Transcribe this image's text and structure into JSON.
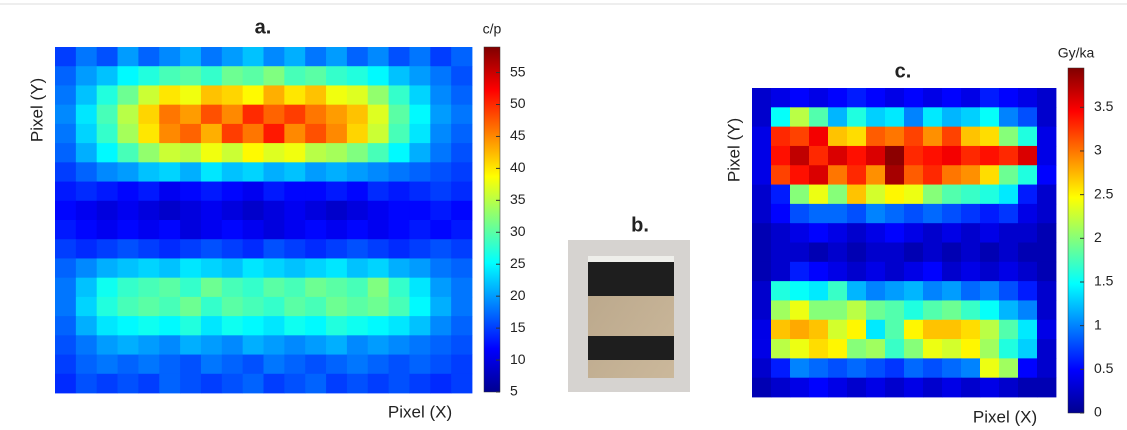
{
  "chart_data": [
    {
      "type": "heatmap",
      "title": "a.",
      "xlabel": "Pixel (X)",
      "ylabel": "Pixel (Y)",
      "colorbar_label": "c/p",
      "colormap": "jet",
      "clim": [
        5,
        59
      ],
      "cticks": [
        5,
        10,
        15,
        20,
        25,
        30,
        35,
        40,
        45,
        50,
        55
      ],
      "z": [
        [
          15,
          18,
          16,
          20,
          17,
          19,
          21,
          18,
          20,
          22,
          19,
          21,
          18,
          20,
          17,
          19,
          16,
          18,
          15,
          17
        ],
        [
          17,
          20,
          22,
          25,
          27,
          29,
          30,
          28,
          31,
          30,
          32,
          29,
          30,
          28,
          27,
          25,
          22,
          20,
          18,
          16
        ],
        [
          18,
          22,
          27,
          31,
          36,
          40,
          38,
          42,
          41,
          39,
          43,
          40,
          42,
          38,
          37,
          33,
          28,
          23,
          19,
          17
        ],
        [
          19,
          24,
          29,
          35,
          41,
          46,
          44,
          48,
          45,
          50,
          47,
          49,
          46,
          44,
          42,
          37,
          30,
          25,
          20,
          18
        ],
        [
          18,
          23,
          28,
          34,
          40,
          45,
          47,
          43,
          49,
          46,
          51,
          45,
          48,
          45,
          41,
          36,
          29,
          24,
          19,
          17
        ],
        [
          17,
          21,
          25,
          29,
          33,
          36,
          35,
          38,
          36,
          39,
          37,
          38,
          35,
          34,
          32,
          29,
          25,
          21,
          18,
          16
        ],
        [
          15,
          17,
          19,
          20,
          22,
          23,
          21,
          24,
          22,
          23,
          21,
          22,
          20,
          21,
          20,
          19,
          18,
          17,
          16,
          15
        ],
        [
          13,
          14,
          13,
          12,
          13,
          11,
          12,
          13,
          12,
          11,
          13,
          12,
          12,
          13,
          12,
          14,
          13,
          14,
          15,
          14
        ],
        [
          12,
          11,
          10,
          11,
          10,
          9,
          10,
          11,
          10,
          9,
          10,
          11,
          10,
          9,
          10,
          11,
          12,
          12,
          13,
          12
        ],
        [
          13,
          12,
          11,
          12,
          11,
          12,
          10,
          11,
          12,
          11,
          10,
          11,
          12,
          11,
          12,
          11,
          12,
          13,
          12,
          13
        ],
        [
          15,
          14,
          15,
          16,
          15,
          14,
          15,
          16,
          15,
          14,
          16,
          15,
          14,
          15,
          16,
          15,
          14,
          15,
          16,
          15
        ],
        [
          17,
          19,
          21,
          22,
          23,
          22,
          24,
          23,
          22,
          24,
          23,
          22,
          23,
          24,
          22,
          23,
          21,
          20,
          18,
          17
        ],
        [
          18,
          22,
          26,
          28,
          29,
          30,
          28,
          31,
          29,
          28,
          30,
          29,
          31,
          30,
          29,
          32,
          28,
          24,
          20,
          18
        ],
        [
          18,
          23,
          27,
          29,
          30,
          29,
          31,
          28,
          30,
          29,
          28,
          30,
          29,
          31,
          30,
          31,
          29,
          25,
          21,
          18
        ],
        [
          17,
          21,
          24,
          25,
          26,
          25,
          27,
          24,
          26,
          25,
          24,
          26,
          25,
          27,
          26,
          25,
          24,
          22,
          19,
          17
        ],
        [
          16,
          18,
          20,
          21,
          20,
          19,
          21,
          20,
          19,
          21,
          20,
          19,
          20,
          21,
          19,
          20,
          19,
          18,
          17,
          16
        ],
        [
          15,
          17,
          18,
          17,
          18,
          17,
          16,
          18,
          17,
          16,
          18,
          17,
          16,
          17,
          18,
          17,
          16,
          17,
          16,
          15
        ],
        [
          14,
          16,
          15,
          16,
          15,
          17,
          16,
          15,
          16,
          17,
          15,
          16,
          17,
          15,
          16,
          15,
          16,
          15,
          14,
          15
        ]
      ]
    },
    {
      "type": "heatmap",
      "title": "c.",
      "xlabel": "Pixel (X)",
      "ylabel": "Pixel (Y)",
      "colorbar_label": "Gy/ka",
      "colormap": "jet",
      "clim": [
        0,
        3.95
      ],
      "cticks": [
        0,
        0.5,
        1,
        1.5,
        2,
        2.5,
        3,
        3.5
      ],
      "z": [
        [
          0.3,
          0.4,
          0.5,
          0.4,
          0.5,
          0.6,
          0.5,
          0.4,
          0.5,
          0.4,
          0.5,
          0.4,
          0.6,
          0.5,
          0.4,
          0.3
        ],
        [
          0.3,
          1.5,
          2.2,
          1.8,
          1.2,
          1.6,
          1.3,
          1.4,
          1.0,
          1.4,
          1.2,
          1.3,
          1.5,
          1.0,
          0.8,
          0.3
        ],
        [
          0.4,
          3.3,
          3.2,
          3.5,
          2.7,
          2.6,
          3.1,
          3.0,
          3.2,
          2.9,
          3.2,
          2.7,
          2.6,
          2.0,
          1.6,
          0.4
        ],
        [
          0.4,
          3.4,
          3.7,
          3.3,
          3.6,
          3.4,
          3.6,
          3.9,
          3.3,
          3.4,
          3.5,
          3.3,
          3.4,
          3.3,
          3.6,
          0.4
        ],
        [
          0.4,
          3.2,
          3.4,
          3.6,
          3.0,
          3.3,
          2.9,
          3.8,
          3.1,
          3.3,
          3.0,
          2.9,
          2.6,
          1.9,
          1.6,
          0.5
        ],
        [
          0.3,
          0.6,
          2.0,
          2.4,
          2.0,
          2.7,
          2.3,
          2.5,
          2.4,
          2.0,
          1.8,
          1.7,
          1.6,
          1.4,
          0.6,
          0.3
        ],
        [
          0.3,
          0.5,
          0.8,
          0.9,
          0.9,
          0.8,
          1.0,
          0.9,
          0.8,
          0.9,
          0.8,
          0.7,
          0.6,
          0.7,
          0.4,
          0.3
        ],
        [
          0.2,
          0.3,
          0.4,
          0.5,
          0.4,
          0.3,
          0.4,
          0.5,
          0.4,
          0.3,
          0.4,
          0.3,
          0.4,
          0.3,
          0.3,
          0.2
        ],
        [
          0.2,
          0.3,
          0.3,
          0.2,
          0.3,
          0.2,
          0.3,
          0.3,
          0.2,
          0.3,
          0.2,
          0.3,
          0.2,
          0.3,
          0.2,
          0.2
        ],
        [
          0.2,
          0.3,
          0.6,
          0.5,
          0.4,
          0.3,
          0.4,
          0.3,
          0.4,
          0.5,
          0.3,
          0.4,
          0.3,
          0.4,
          0.3,
          0.2
        ],
        [
          0.3,
          1.6,
          1.5,
          1.4,
          1.7,
          1.2,
          1.0,
          1.1,
          1.2,
          1.0,
          1.1,
          0.9,
          1.0,
          0.8,
          0.6,
          0.3
        ],
        [
          0.3,
          2.1,
          2.4,
          2.0,
          2.0,
          2.2,
          1.9,
          1.8,
          1.6,
          1.8,
          1.9,
          1.7,
          1.5,
          1.2,
          1.0,
          0.3
        ],
        [
          0.4,
          2.7,
          2.8,
          2.7,
          2.3,
          2.5,
          1.4,
          1.8,
          2.5,
          2.7,
          2.7,
          2.6,
          2.2,
          1.8,
          1.4,
          0.4
        ],
        [
          0.4,
          2.2,
          2.4,
          2.6,
          2.5,
          2.0,
          2.1,
          1.7,
          2.0,
          2.4,
          2.3,
          2.5,
          2.1,
          1.6,
          1.3,
          0.3
        ],
        [
          0.3,
          0.6,
          1.0,
          0.9,
          0.8,
          0.9,
          0.8,
          0.7,
          0.9,
          0.8,
          0.9,
          1.0,
          2.4,
          2.1,
          0.5,
          0.3
        ],
        [
          0.2,
          0.3,
          0.4,
          0.5,
          0.4,
          0.3,
          0.4,
          0.3,
          0.4,
          0.3,
          0.4,
          0.3,
          0.4,
          0.3,
          0.2,
          0.2
        ]
      ]
    }
  ],
  "photo": {
    "title": "b."
  }
}
